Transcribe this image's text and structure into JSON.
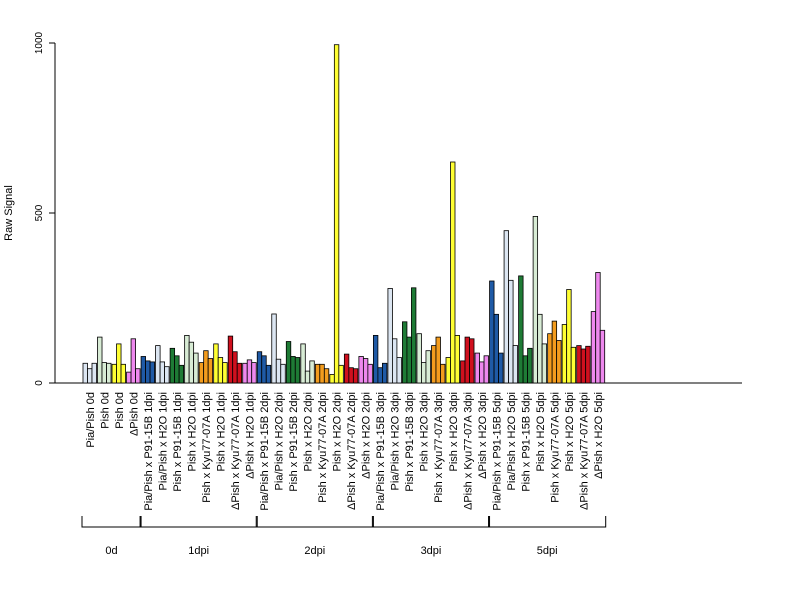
{
  "chart_data": {
    "type": "bar",
    "ylabel": "Raw Signal",
    "xlabel": "",
    "ylim": [
      0,
      1000
    ],
    "yticks": [
      0,
      500,
      1000
    ],
    "grid": false,
    "legend": "none",
    "categories": [
      "Pia/Pish 0d",
      "Pish 0d",
      "Pish 0d",
      "ΔPish 0d",
      "Pia/Pish x P91-15B 1dpi",
      "Pia/Pish x H2O 1dpi",
      "Pish x P91-15B 1dpi",
      "Pish x H2O 1dpi",
      "Pish x Kyu77-07A 1dpi",
      "Pish x H2O 1dpi",
      "ΔPish x Kyu77-07A 1dpi",
      "ΔPish x H2O 1dpi",
      "Pia/Pish x P91-15B 2dpi",
      "Pia/Pish x H2O 2dpi",
      "Pish x P91-15B 2dpi",
      "Pish x H2O 2dpi",
      "Pish x Kyu77-07A 2dpi",
      "Pish x H2O 2dpi",
      "ΔPish x Kyu77-07A 2dpi",
      "ΔPish x H2O 2dpi",
      "Pia/Pish x P91-15B 3dpi",
      "Pia/Pish x H2O 3dpi",
      "Pish x P91-15B 3dpi",
      "Pish x H2O 3dpi",
      "Pish x Kyu77-07A 3dpi",
      "Pish x H2O 3dpi",
      "ΔPish x Kyu77-07A 3dpi",
      "ΔPish x H2O 3dpi",
      "Pia/Pish x P91-15B 5dpi",
      "Pia/Pish x H2O 5dpi",
      "Pish x P91-15B 5dpi",
      "Pish x H2O 5dpi",
      "Pish x Kyu77-07A 5dpi",
      "Pish x H2O 5dpi",
      "ΔPish x Kyu77-07A 5dpi",
      "ΔPish x H2O 5dpi"
    ],
    "colors": [
      "#dce6f2",
      "#d8ecd5",
      "#ffff33",
      "#ee88ee",
      "#1f5aa6",
      "#dce6f2",
      "#1e7b35",
      "#d8ecd5",
      "#f39c1e",
      "#ffff33",
      "#d0101e",
      "#ee88ee",
      "#1f5aa6",
      "#dce6f2",
      "#1e7b35",
      "#d8ecd5",
      "#f39c1e",
      "#ffff33",
      "#d0101e",
      "#ee88ee",
      "#1f5aa6",
      "#dce6f2",
      "#1e7b35",
      "#d8ecd5",
      "#f39c1e",
      "#ffff33",
      "#d0101e",
      "#ee88ee",
      "#1f5aa6",
      "#dce6f2",
      "#1e7b35",
      "#d8ecd5",
      "#f39c1e",
      "#ffff33",
      "#d0101e",
      "#ee88ee"
    ],
    "values": [
      [
        58,
        42,
        58
      ],
      [
        135,
        60,
        58
      ],
      [
        55,
        115,
        55
      ],
      [
        32,
        130,
        42
      ],
      [
        78,
        65,
        62
      ],
      [
        110,
        62,
        48
      ],
      [
        102,
        80,
        52
      ],
      [
        140,
        120,
        88
      ],
      [
        60,
        95,
        72
      ],
      [
        115,
        75,
        60
      ],
      [
        138,
        92,
        58
      ],
      [
        58,
        68,
        60
      ],
      [
        92,
        80,
        52
      ],
      [
        203,
        70,
        55
      ],
      [
        122,
        78,
        75
      ],
      [
        115,
        35,
        65
      ],
      [
        55,
        55,
        42
      ],
      [
        25,
        995,
        52
      ],
      [
        85,
        45,
        42
      ],
      [
        78,
        72,
        55
      ],
      [
        140,
        45,
        58
      ],
      [
        278,
        130,
        75
      ],
      [
        180,
        135,
        280
      ],
      [
        145,
        60,
        95
      ],
      [
        110,
        135,
        55
      ],
      [
        75,
        650,
        140
      ],
      [
        65,
        135,
        130
      ],
      [
        88,
        62,
        80
      ],
      [
        300,
        202,
        88
      ],
      [
        448,
        302,
        110
      ],
      [
        315,
        80,
        102
      ],
      [
        490,
        202,
        115
      ],
      [
        145,
        182,
        125
      ],
      [
        172,
        275,
        105
      ],
      [
        110,
        100,
        108
      ],
      [
        210,
        325,
        155
      ]
    ],
    "groups": [
      {
        "label": "0d",
        "start": 0,
        "end": 3
      },
      {
        "label": "1dpi",
        "start": 4,
        "end": 11
      },
      {
        "label": "2dpi",
        "start": 12,
        "end": 19
      },
      {
        "label": "3dpi",
        "start": 20,
        "end": 27
      },
      {
        "label": "5dpi",
        "start": 28,
        "end": 35
      }
    ]
  }
}
